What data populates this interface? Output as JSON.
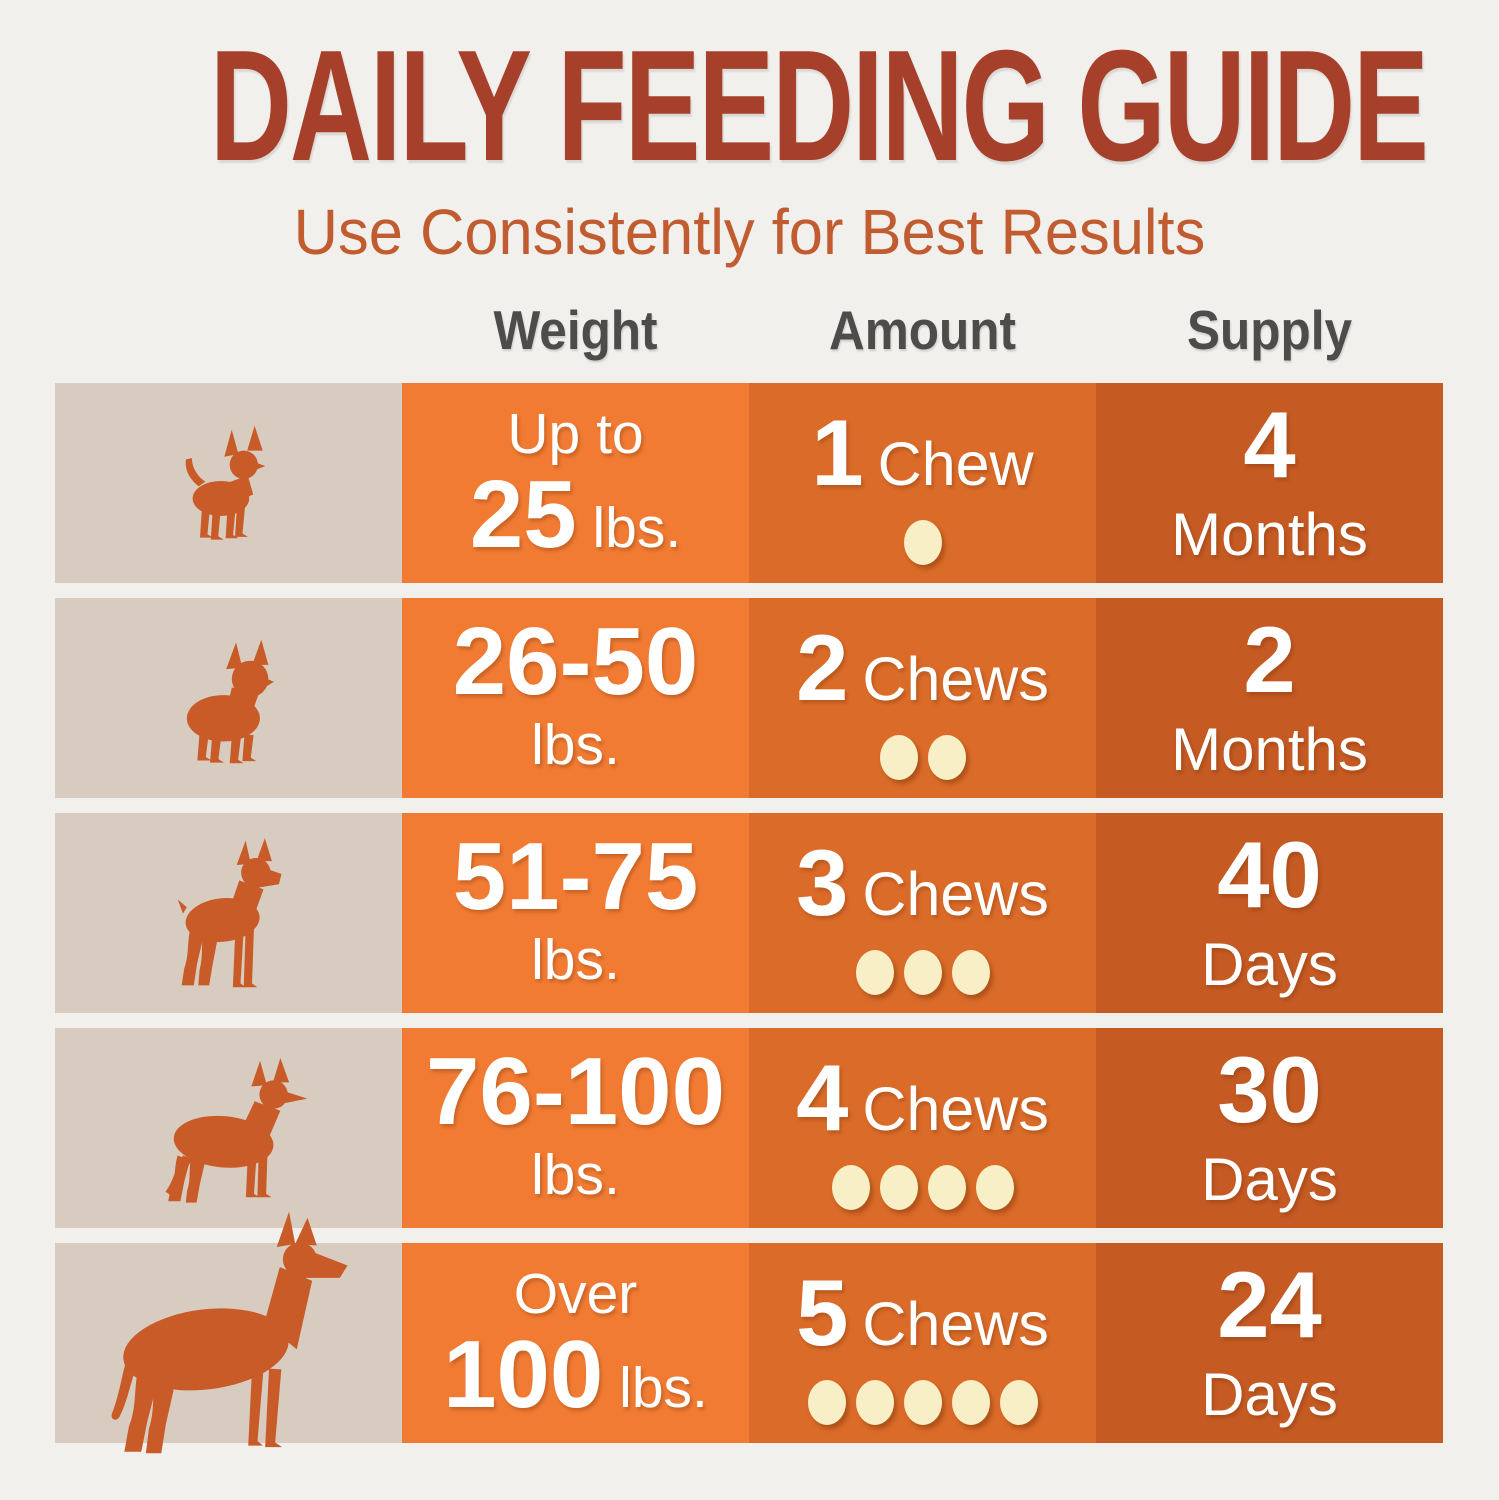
{
  "header": {
    "title": "DAILY FEEDING GUIDE",
    "subtitle": "Use Consistently for Best Results"
  },
  "table": {
    "headers": [
      {
        "id": "weight",
        "label": "Weight"
      },
      {
        "id": "amount",
        "label": "Amount"
      },
      {
        "id": "supply",
        "label": "Supply"
      }
    ],
    "rows": [
      {
        "dog": "chihuahua",
        "weight": {
          "prefix": "Up to",
          "value": "25",
          "unit_inline": "lbs.",
          "unit_below": ""
        },
        "amount": {
          "count": "1",
          "label": "Chew",
          "dots": 1
        },
        "supply": {
          "value": "4",
          "unit": "Months"
        }
      },
      {
        "dog": "french-bulldog",
        "weight": {
          "prefix": "",
          "value": "26-50",
          "unit_inline": "",
          "unit_below": "lbs."
        },
        "amount": {
          "count": "2",
          "label": "Chews",
          "dots": 2
        },
        "supply": {
          "value": "2",
          "unit": "Months"
        }
      },
      {
        "dog": "boxer",
        "weight": {
          "prefix": "",
          "value": "51-75",
          "unit_inline": "",
          "unit_below": "lbs."
        },
        "amount": {
          "count": "3",
          "label": "Chews",
          "dots": 3
        },
        "supply": {
          "value": "40",
          "unit": "Days"
        }
      },
      {
        "dog": "german-shepherd",
        "weight": {
          "prefix": "",
          "value": "76-100",
          "unit_inline": "",
          "unit_below": "lbs."
        },
        "amount": {
          "count": "4",
          "label": "Chews",
          "dots": 4
        },
        "supply": {
          "value": "30",
          "unit": "Days"
        }
      },
      {
        "dog": "great-dane",
        "weight": {
          "prefix": "Over",
          "value": "100",
          "unit_inline": "lbs.",
          "unit_below": ""
        },
        "amount": {
          "count": "5",
          "label": "Chews",
          "dots": 5
        },
        "supply": {
          "value": "24",
          "unit": "Days"
        }
      }
    ]
  },
  "theme": {
    "bg": "#F2F0ED",
    "beige": "#D8CCC0",
    "weight-col": "#F17B33",
    "amount-col": "#DB6B29",
    "supply-col": "#C55A23",
    "dog": "#C85B28",
    "title": "#A7402A",
    "subtitle": "#C05C30",
    "header-text": "#4D4C4A",
    "dot": "#F8EFC7",
    "text-white": "#FFFFFF"
  },
  "chart_data": {
    "type": "table",
    "title": "DAILY FEEDING GUIDE",
    "subtitle": "Use Consistently for Best Results",
    "columns": [
      "Dog",
      "Weight",
      "Amount",
      "Supply"
    ],
    "rows": [
      [
        "chihuahua (small dog)",
        "Up to 25 lbs.",
        "1 Chew",
        "4 Months"
      ],
      [
        "french bulldog (medium dog)",
        "26-50 lbs.",
        "2 Chews",
        "2 Months"
      ],
      [
        "boxer (large dog)",
        "51-75 lbs.",
        "3 Chews",
        "40 Days"
      ],
      [
        "german shepherd (x-large dog)",
        "76-100 lbs.",
        "4 Chews",
        "30 Days"
      ],
      [
        "great dane (xx-large dog)",
        "Over 100 lbs.",
        "5 Chews",
        "24 Days"
      ]
    ]
  }
}
